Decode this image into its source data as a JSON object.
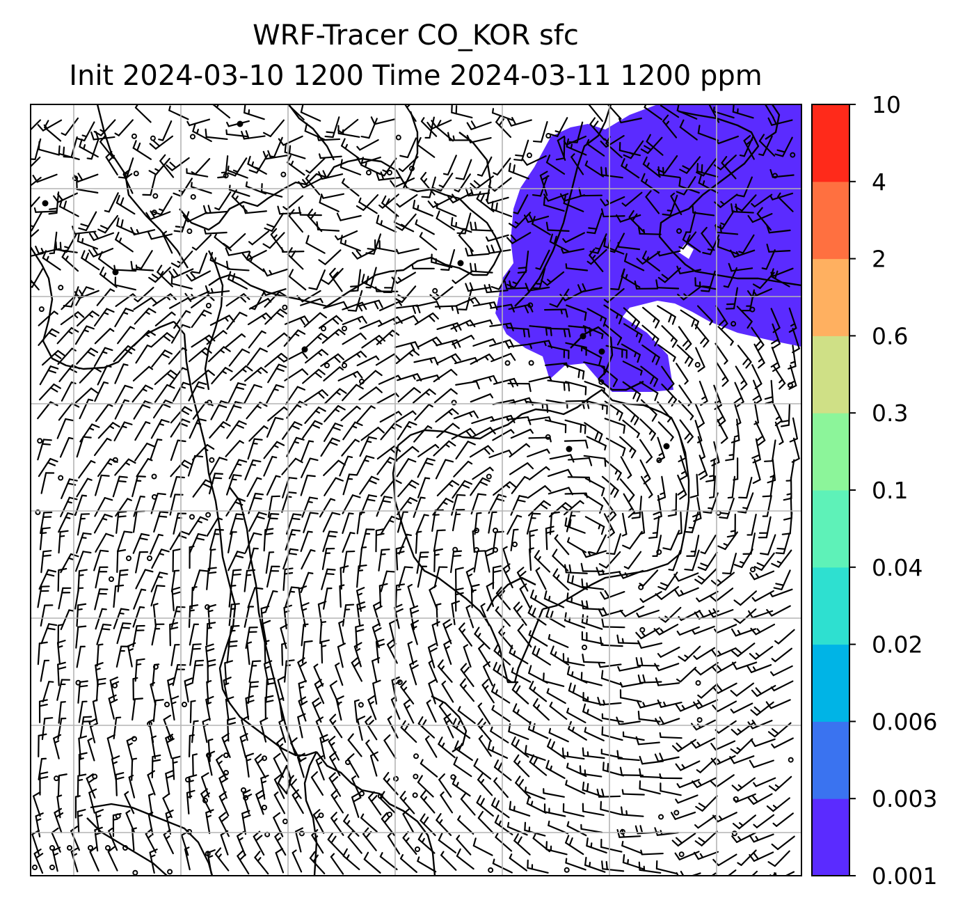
{
  "title": {
    "line1": "WRF-Tracer CO_KOR sfc",
    "line2": "Init 2024-03-10 1200 Time 2024-03-11 1200 ppm"
  },
  "colorbar": {
    "tick_labels": [
      "0.001",
      "0.003",
      "0.006",
      "0.02",
      "0.04",
      "0.1",
      "0.3",
      "0.6",
      "2",
      "4",
      "10"
    ],
    "colors": [
      "#5b2bff",
      "#3a73f0",
      "#00b4e6",
      "#2ee0d0",
      "#5ef2b8",
      "#8cf59a",
      "#cfe086",
      "#ffb060",
      "#ff7040",
      "#ff2a1a"
    ]
  },
  "map": {
    "layers": [
      "co-tracer-shading",
      "wind-barbs",
      "coastlines",
      "lat-lon-grid"
    ],
    "tracer_region_color": "#5b2bff",
    "grid_color": "#b4b4b4"
  }
}
